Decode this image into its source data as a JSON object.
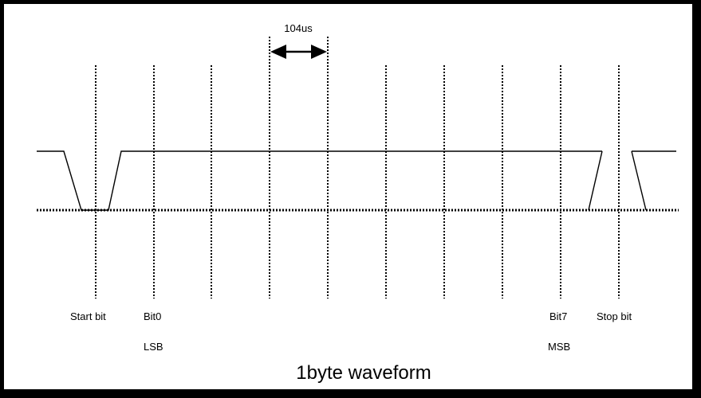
{
  "diagram": {
    "title": "1byte waveform",
    "bit_period_label": "104us",
    "labels": {
      "start_bit": "Start bit",
      "bit0": "Bit0",
      "lsb": "LSB",
      "bit7": "Bit7",
      "msb": "MSB",
      "stop_bit": "Stop bit"
    },
    "colors": {
      "line": "#000000",
      "background": "#ffffff"
    }
  }
}
